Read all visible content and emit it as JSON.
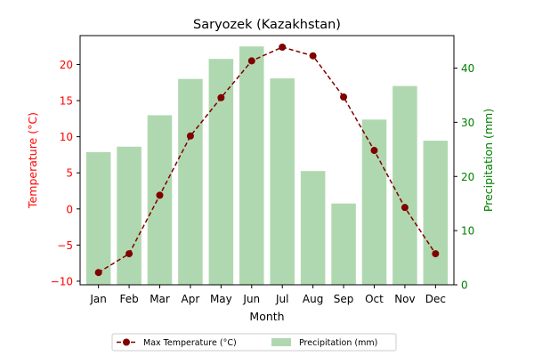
{
  "chart_data": {
    "type": "bar+line",
    "title": "Saryozek (Kazakhstan)",
    "xlabel": "Month",
    "categories": [
      "Jan",
      "Feb",
      "Mar",
      "Apr",
      "May",
      "Jun",
      "Jul",
      "Aug",
      "Sep",
      "Oct",
      "Nov",
      "Dec"
    ],
    "left_axis": {
      "label": "Temperature (°C)",
      "color": "#ff0000",
      "ylim": [
        -10.5,
        24
      ],
      "ticks": [
        -10,
        -5,
        0,
        5,
        10,
        15,
        20
      ]
    },
    "right_axis": {
      "label": "Precipitation (mm)",
      "color": "#008000",
      "ylim": [
        0,
        46
      ],
      "ticks": [
        0,
        10,
        20,
        30,
        40
      ]
    },
    "series": [
      {
        "name": "Max Temperature (°C)",
        "kind": "line",
        "axis": "left",
        "color": "#800000",
        "line_style": "dashed",
        "marker": "circle",
        "values": [
          -8.8,
          -6.2,
          1.9,
          10.1,
          15.4,
          20.5,
          22.4,
          21.2,
          15.5,
          8.1,
          0.2,
          -6.2
        ]
      },
      {
        "name": "Precipitation (mm)",
        "kind": "bar",
        "axis": "right",
        "color": "#b0d8b0",
        "values": [
          24.5,
          25.5,
          31.3,
          38.0,
          41.7,
          44.0,
          38.1,
          21.0,
          15.0,
          30.5,
          36.7,
          26.6
        ]
      }
    ],
    "legend": {
      "placement": "bottom-center",
      "entries": [
        "Max Temperature (°C)",
        "Precipitation (mm)"
      ]
    },
    "grid": false
  }
}
